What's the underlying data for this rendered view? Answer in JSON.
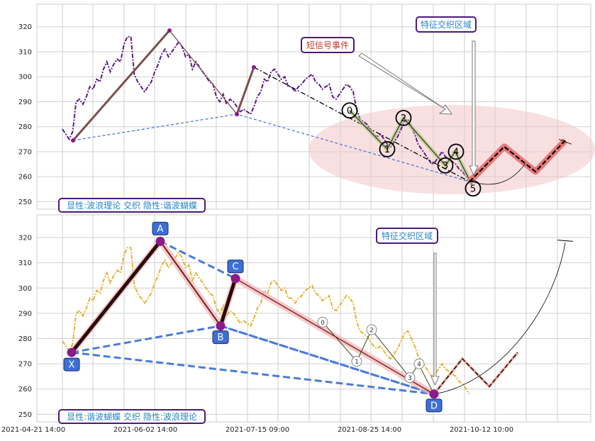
{
  "x_tick_labels": [
    "2021-04-21 14:00",
    "2021-06-02 14:00",
    "2021-07-15 09:00",
    "2021-08-25 14:00",
    "2021-10-12 10:00"
  ],
  "colors": {
    "price_top": "#5b1a8a",
    "price_bottom": "#e8b030",
    "wave_brown": "#7a5050",
    "dashed_blue": "#4a7bd8",
    "highlight_red": "#e87878",
    "ellipse": "#f2c6c8",
    "label_border": "#4b1a7a",
    "label_text": "#2a84c4",
    "badge_fill": "#3d6fd4"
  },
  "chart_data": [
    {
      "type": "line",
      "panel": "top",
      "x_ticks": [
        "2021-04-21 14:00",
        "2021-06-02 14:00",
        "2021-07-15 09:00",
        "2021-08-25 14:00",
        "2021-10-12 10:00"
      ],
      "ylim": [
        247,
        329
      ],
      "y_ticks": [
        250,
        260,
        270,
        280,
        290,
        300,
        310,
        320
      ],
      "grid": true,
      "series": [
        {
          "kind": "price",
          "values": [
            279,
            277,
            275,
            278,
            290,
            291,
            289,
            292,
            296,
            295,
            299,
            298,
            303,
            306,
            302,
            305,
            307,
            306,
            313,
            316,
            316,
            301,
            298,
            296,
            294,
            296,
            298,
            302,
            305,
            309,
            311,
            308,
            310,
            312,
            314,
            312,
            308,
            309,
            303,
            306,
            304,
            302,
            300,
            298,
            297,
            292,
            290,
            293,
            289,
            291,
            290,
            288,
            286,
            287,
            286,
            285,
            288,
            292,
            294,
            299,
            298,
            302,
            303,
            301,
            299,
            300,
            296,
            296,
            294,
            296,
            297,
            299,
            300,
            301,
            298,
            297,
            295,
            296,
            297,
            292,
            291,
            293,
            295,
            297,
            296,
            294,
            287,
            283,
            282,
            281,
            279,
            277,
            276,
            277,
            275,
            273,
            272,
            274,
            276,
            279,
            282,
            283,
            280,
            277,
            273,
            271,
            269,
            267,
            265,
            266,
            268,
            270,
            268,
            267,
            266,
            265,
            263,
            262,
            260,
            258
          ]
        },
        {
          "kind": "wave",
          "points": [
            [
              0.12,
              274.5
            ],
            [
              0.4,
              318.5
            ],
            [
              0.58,
              285
            ],
            [
              0.61,
              303.8
            ]
          ]
        }
      ],
      "wave_labels": [
        {
          "label": "0",
          "x": 59,
          "y": 286.5
        },
        {
          "label": "1",
          "x": 66,
          "y": 271
        },
        {
          "label": "2",
          "x": 68.5,
          "y": 283.5
        },
        {
          "label": "3",
          "x": 75.5,
          "y": 264.5
        },
        {
          "label": "4",
          "x": 77.5,
          "y": 270
        },
        {
          "label": "5",
          "x": 80,
          "y": 257
        }
      ],
      "annotations": {
        "short_signal": "短信号事件",
        "feature_zone": "特征交织区域",
        "legend": "显性:波浪理论 交织 隐性:谐波蝴蝶"
      }
    },
    {
      "type": "line",
      "panel": "bottom",
      "x_ticks": [
        "2021-04-21 14:00",
        "2021-06-02 14:00",
        "2021-07-15 09:00",
        "2021-08-25 14:00",
        "2021-10-12 10:00"
      ],
      "ylim": [
        247,
        329
      ],
      "y_ticks": [
        250,
        260,
        270,
        280,
        290,
        300,
        310,
        320
      ],
      "grid": true,
      "series": [
        {
          "kind": "price",
          "values": [
            279,
            277,
            275,
            278,
            290,
            291,
            289,
            292,
            296,
            295,
            299,
            298,
            303,
            306,
            302,
            305,
            307,
            306,
            313,
            316,
            316,
            301,
            298,
            296,
            294,
            296,
            298,
            302,
            305,
            309,
            311,
            308,
            310,
            312,
            314,
            312,
            308,
            309,
            303,
            306,
            304,
            302,
            300,
            298,
            297,
            292,
            290,
            293,
            289,
            291,
            290,
            288,
            286,
            287,
            286,
            285,
            288,
            292,
            294,
            299,
            298,
            302,
            303,
            301,
            299,
            300,
            296,
            296,
            294,
            296,
            297,
            299,
            300,
            301,
            298,
            297,
            295,
            296,
            297,
            292,
            291,
            293,
            295,
            297,
            296,
            294,
            287,
            283,
            282,
            281,
            279,
            277,
            276,
            277,
            275,
            273,
            272,
            274,
            276,
            279,
            282,
            283,
            280,
            277,
            273,
            271,
            269,
            267,
            265,
            266,
            268,
            270,
            268,
            267,
            266,
            265,
            263,
            262,
            260,
            258
          ]
        }
      ],
      "harmonic_points": [
        {
          "label": "X",
          "y": 274.5
        },
        {
          "label": "A",
          "y": 318.5
        },
        {
          "label": "B",
          "y": 285
        },
        {
          "label": "C",
          "y": 303.8
        },
        {
          "label": "D",
          "y": 258
        }
      ],
      "wave_labels": [
        {
          "label": "0",
          "y": 286.5
        },
        {
          "label": "1",
          "y": 271
        },
        {
          "label": "2",
          "y": 283.5
        },
        {
          "label": "3",
          "y": 264.5
        },
        {
          "label": "4",
          "y": 270
        }
      ],
      "annotations": {
        "feature_zone": "特征交织区域",
        "legend": "显性:谐波蝴蝶 交织 隐性:波浪理论"
      }
    }
  ]
}
